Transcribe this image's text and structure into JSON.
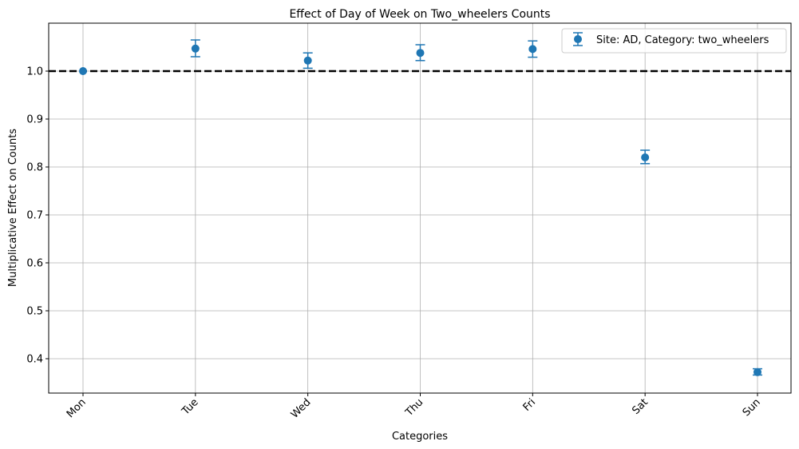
{
  "chart_data": {
    "type": "scatter",
    "title": "Effect of Day of Week on Two_wheelers Counts",
    "xlabel": "Categories",
    "ylabel": "Multiplicative Effect on Counts",
    "categories": [
      "Mon",
      "Tue",
      "Wed",
      "Thu",
      "Fri",
      "Sat",
      "Sun"
    ],
    "series": [
      {
        "name": "Site: AD, Category: two_wheelers",
        "values": [
          1.0,
          1.047,
          1.022,
          1.038,
          1.046,
          0.82,
          0.372
        ],
        "err_low": [
          1.0,
          1.03,
          1.006,
          1.022,
          1.029,
          0.807,
          0.366
        ],
        "err_high": [
          1.0,
          1.065,
          1.038,
          1.055,
          1.063,
          0.835,
          0.379
        ],
        "color": "#1f77b4"
      }
    ],
    "reference_line": {
      "y": 1.0,
      "style": "dashed",
      "color": "#000000"
    },
    "yticks": [
      "0.4",
      "0.5",
      "0.6",
      "0.7",
      "0.8",
      "0.9",
      "1.0"
    ],
    "ylim": [
      0.33,
      1.1
    ],
    "grid": true,
    "legend_position": "top-right",
    "xtick_rotation": 45
  }
}
